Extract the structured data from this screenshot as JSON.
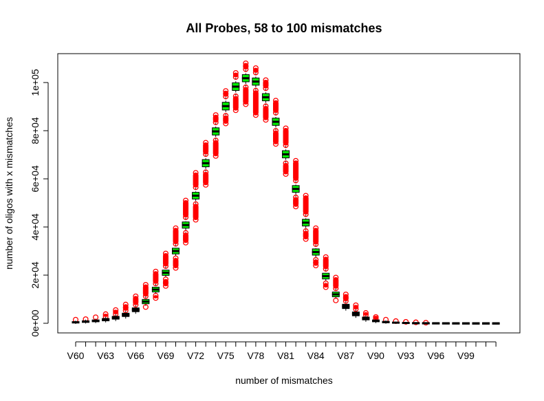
{
  "chart_data": {
    "type": "box",
    "title": "All Probes, 58 to 100 mismatches",
    "xlabel": "number of mismatches",
    "ylabel": "number of oligos with x mismatches",
    "categories": [
      "V60",
      "V61",
      "V62",
      "V63",
      "V64",
      "V65",
      "V66",
      "V67",
      "V68",
      "V69",
      "V70",
      "V71",
      "V72",
      "V73",
      "V74",
      "V75",
      "V76",
      "V77",
      "V78",
      "V79",
      "V80",
      "V81",
      "V82",
      "V83",
      "V84",
      "V85",
      "V86",
      "V87",
      "V88",
      "V89",
      "V90",
      "V91",
      "V92",
      "V93",
      "V94",
      "V95",
      "V96",
      "V97",
      "V98",
      "V99",
      "V100",
      "V101",
      "V102"
    ],
    "x_tick_labels": [
      "V60",
      "V63",
      "V66",
      "V69",
      "V72",
      "V75",
      "V78",
      "V81",
      "V84",
      "V87",
      "V90",
      "V93",
      "V96",
      "V99"
    ],
    "y_ticks": [
      0,
      20000,
      40000,
      60000,
      80000,
      100000
    ],
    "y_tick_labels": [
      "0e+00",
      "2e+04",
      "4e+04",
      "6e+04",
      "8e+04",
      "1e+05"
    ],
    "ylim": [
      -4000,
      108000
    ],
    "grid": false,
    "colors": {
      "box_green": "#00ee00",
      "box_black": "#000000",
      "outlier": "#ff0000"
    },
    "medians": [
      400,
      700,
      1000,
      1500,
      2300,
      3500,
      5600,
      9000,
      14000,
      21000,
      30000,
      40800,
      53000,
      66500,
      79700,
      90200,
      98300,
      101800,
      100400,
      93900,
      83700,
      70200,
      55800,
      41800,
      29600,
      19600,
      12000,
      7000,
      3900,
      2000,
      1000,
      500,
      250,
      130,
      70,
      40,
      20,
      10,
      6,
      3,
      2,
      1,
      1
    ],
    "box_halfheight": [
      300,
      350,
      400,
      500,
      600,
      700,
      800,
      900,
      1000,
      1100,
      1200,
      1300,
      1400,
      1500,
      1500,
      1600,
      1600,
      1500,
      1500,
      1500,
      1500,
      1500,
      1400,
      1400,
      1300,
      1200,
      1000,
      900,
      800,
      600,
      400,
      300,
      200,
      150,
      100,
      80,
      60,
      50,
      40,
      30,
      20,
      20,
      20
    ],
    "outlier_low": [
      0,
      0,
      0,
      0,
      0,
      0,
      0,
      6500,
      10500,
      15500,
      23000,
      33500,
      43000,
      57500,
      69500,
      83000,
      88500,
      91000,
      86500,
      84500,
      74500,
      62000,
      48500,
      35000,
      24000,
      15000,
      9000,
      5000,
      2500,
      1000,
      300,
      0,
      0,
      0,
      0,
      0,
      0,
      0,
      0,
      0,
      0,
      0,
      0
    ],
    "outlier_high": [
      1500,
      1700,
      2500,
      3800,
      5500,
      7800,
      11200,
      16000,
      21500,
      29000,
      39500,
      51000,
      62500,
      75000,
      86500,
      96500,
      104000,
      108000,
      106000,
      101000,
      92500,
      81000,
      67500,
      53000,
      39500,
      27500,
      19000,
      12000,
      7500,
      4300,
      2600,
      1500,
      900,
      600,
      400,
      250,
      150,
      100,
      60,
      40,
      30,
      20,
      20
    ]
  }
}
